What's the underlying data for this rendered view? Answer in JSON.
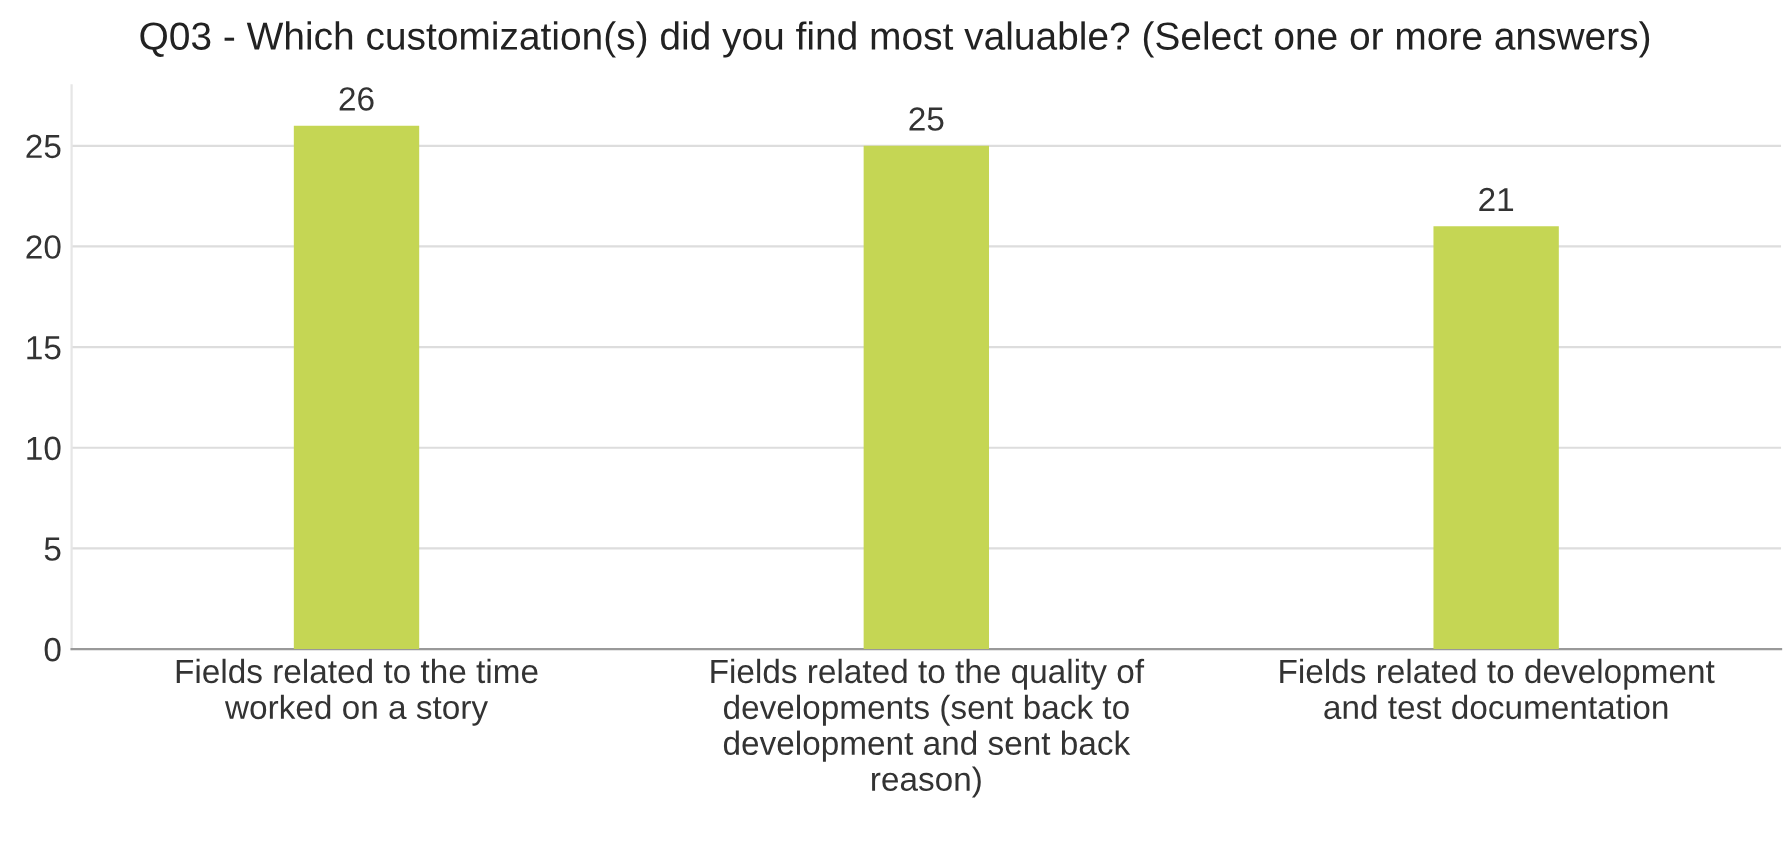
{
  "chart_data": {
    "type": "bar",
    "title": "Q03 - Which customization(s) did you find most valuable? (Select one or more answers)",
    "categories": [
      "Fields related to the time\nworked on a story",
      "Fields related to the quality of\ndevelopments (sent back to\ndevelopment and sent back\nreason)",
      "Fields related to development\nand test documentation"
    ],
    "values": [
      26,
      25,
      21
    ],
    "color": "#c5d654",
    "ylim": [
      0,
      28
    ],
    "yticks": [
      0,
      5,
      10,
      15,
      20,
      25
    ],
    "grid": "y",
    "data_labels": true
  }
}
